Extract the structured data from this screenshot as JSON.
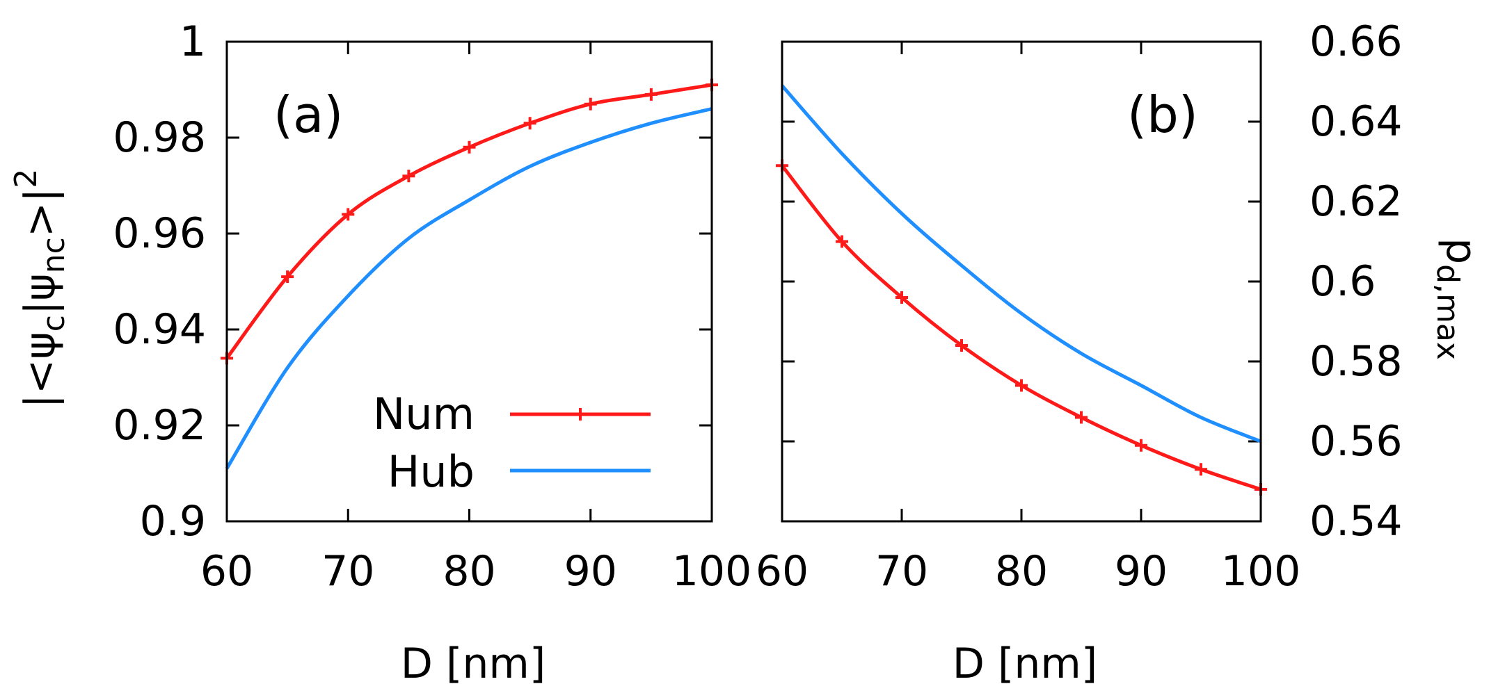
{
  "chart_data": [
    {
      "panel": "(a)",
      "type": "line",
      "xlabel": "D [nm]",
      "ylabel": "|<ψc|ψnc>|²",
      "xlim": [
        60,
        100
      ],
      "ylim": [
        0.9,
        1.0
      ],
      "x_ticks": [
        "60",
        "70",
        "80",
        "90",
        "100"
      ],
      "y_ticks": [
        "0.9",
        "0.92",
        "0.94",
        "0.96",
        "0.98",
        "1"
      ],
      "legend_position": "bottom-right",
      "series": [
        {
          "name": "Num",
          "color": "#ff1a1a",
          "markers": true,
          "x": [
            60,
            65,
            70,
            75,
            80,
            85,
            90,
            95,
            100
          ],
          "y": [
            0.934,
            0.951,
            0.964,
            0.972,
            0.978,
            0.983,
            0.987,
            0.989,
            0.991
          ]
        },
        {
          "name": "Hub",
          "color": "#1f8fff",
          "markers": false,
          "x": [
            60,
            65,
            70,
            75,
            80,
            85,
            90,
            95,
            100
          ],
          "y": [
            0.911,
            0.932,
            0.947,
            0.959,
            0.967,
            0.974,
            0.979,
            0.983,
            0.986
          ]
        }
      ]
    },
    {
      "panel": "(b)",
      "type": "line",
      "xlabel": "D [nm]",
      "ylabel": "p_d,max",
      "ylabel_main": "p",
      "ylabel_sub": "d,max",
      "xlim": [
        60,
        100
      ],
      "ylim": [
        0.54,
        0.66
      ],
      "x_ticks": [
        "60",
        "70",
        "80",
        "90",
        "100"
      ],
      "y_ticks": [
        "0.54",
        "0.56",
        "0.58",
        "0.6",
        "0.62",
        "0.64",
        "0.66"
      ],
      "y_axis_side": "right",
      "series": [
        {
          "name": "Num",
          "color": "#ff1a1a",
          "markers": true,
          "x": [
            60,
            65,
            70,
            75,
            80,
            85,
            90,
            95,
            100
          ],
          "y": [
            0.629,
            0.61,
            0.596,
            0.584,
            0.574,
            0.566,
            0.559,
            0.553,
            0.548
          ]
        },
        {
          "name": "Hub",
          "color": "#1f8fff",
          "markers": false,
          "x": [
            60,
            65,
            70,
            75,
            80,
            85,
            90,
            95,
            100
          ],
          "y": [
            0.649,
            0.632,
            0.617,
            0.604,
            0.592,
            0.582,
            0.574,
            0.566,
            0.56
          ]
        }
      ]
    }
  ]
}
